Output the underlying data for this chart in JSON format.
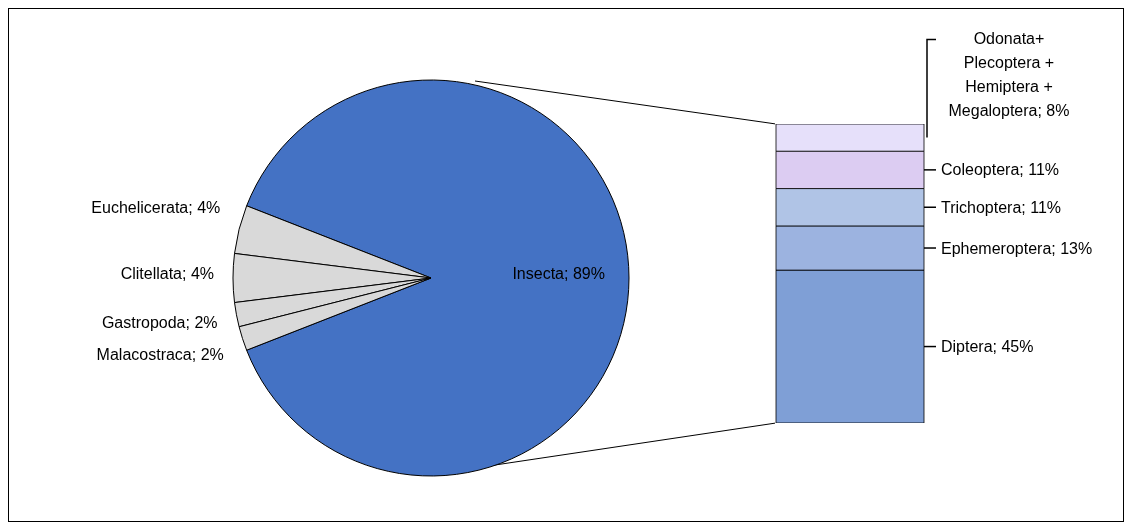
{
  "chart_data": [
    {
      "type": "pie",
      "categories": [
        "Insecta",
        "Euchelicerata",
        "Clitellata",
        "Gastropoda",
        "Malacostraca"
      ],
      "values": [
        89,
        4,
        4,
        2,
        2
      ],
      "colors": [
        "#4472c4",
        "#d9d9d9",
        "#d9d9d9",
        "#d9d9d9",
        "#d9d9d9"
      ],
      "value_labels": [
        "89%",
        "4%",
        "4%",
        "2%",
        "2%"
      ]
    },
    {
      "type": "bar",
      "stacked": true,
      "categories": [
        null
      ],
      "series": [
        {
          "color": "#7f9fd6",
          "values": [
            45
          ],
          "value_labels": [
            "Diptera; 45%"
          ]
        },
        {
          "color": "#9cb3e0",
          "values": [
            13
          ],
          "value_labels": [
            "Ephemeroptera; 13%"
          ]
        },
        {
          "color": "#b0c4e6",
          "values": [
            11
          ],
          "value_labels": [
            "Trichoptera; 11%"
          ]
        },
        {
          "color": "#dcccf2",
          "values": [
            11
          ],
          "value_labels": [
            "Coleoptera; 11%"
          ]
        },
        {
          "color": "#e6e0fa",
          "values": [
            8
          ],
          "value_labels": [
            "Odonata+ Plecoptera + Hemiptera + Megaloptera; 8%"
          ]
        }
      ]
    }
  ]
}
